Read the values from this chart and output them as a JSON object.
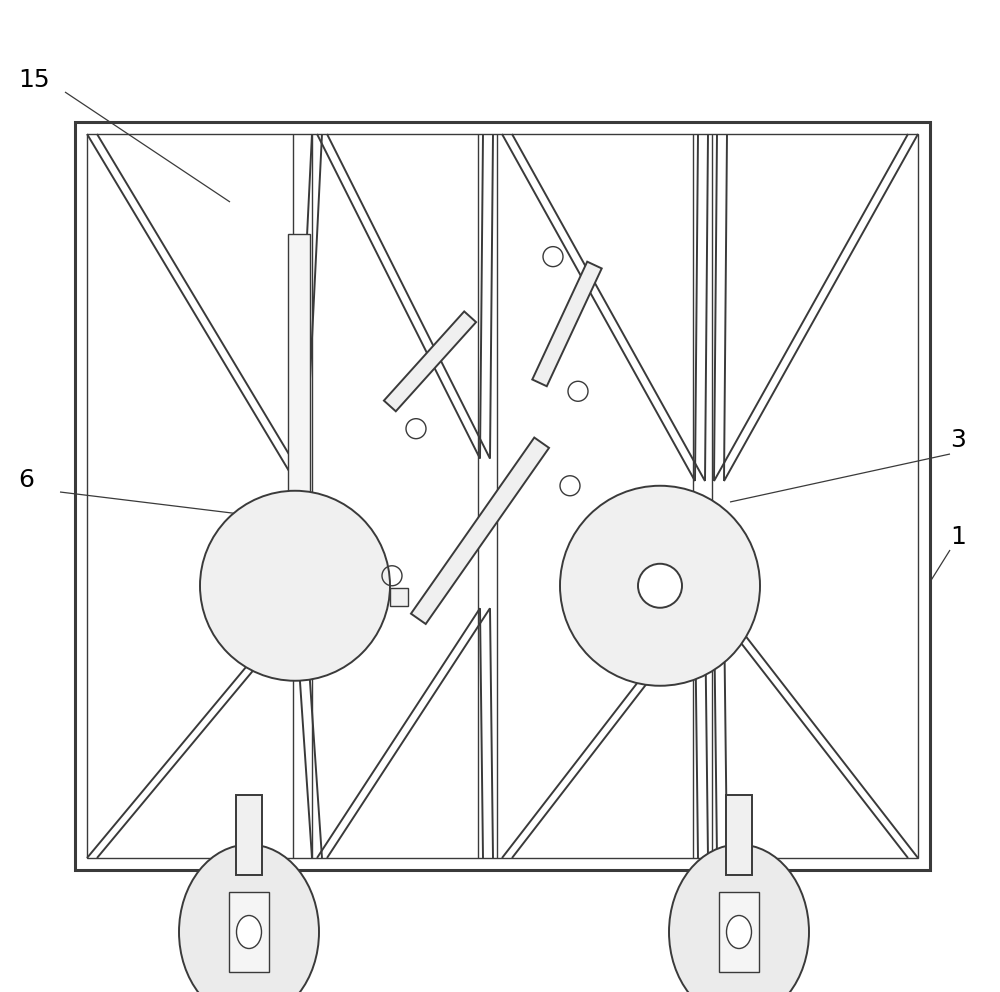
{
  "bg_color": "#ffffff",
  "line_color": "#3a3a3a",
  "lw_main": 1.4,
  "lw_thin": 1.0,
  "lw_thick": 2.2,
  "figure_size": [
    10.0,
    9.92
  ]
}
